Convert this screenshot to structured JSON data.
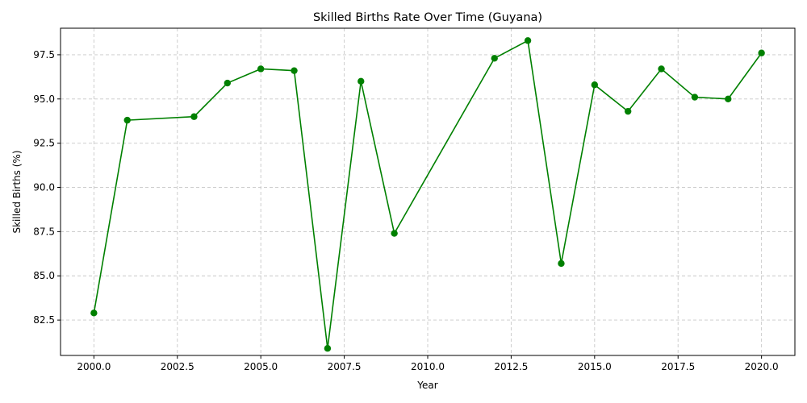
{
  "chart_data": {
    "type": "line",
    "title": "Skilled Births Rate Over Time (Guyana)",
    "xlabel": "Year",
    "ylabel": "Skilled Births (%)",
    "xlim": [
      1999,
      2021
    ],
    "ylim": [
      80.5,
      99.0
    ],
    "xticks": [
      2000.0,
      2002.5,
      2005.0,
      2007.5,
      2010.0,
      2012.5,
      2015.0,
      2017.5,
      2020.0
    ],
    "xtick_labels": [
      "2000.0",
      "2002.5",
      "2005.0",
      "2007.5",
      "2010.0",
      "2012.5",
      "2015.0",
      "2017.5",
      "2020.0"
    ],
    "yticks": [
      82.5,
      85.0,
      87.5,
      90.0,
      92.5,
      95.0,
      97.5
    ],
    "ytick_labels": [
      "82.5",
      "85.0",
      "87.5",
      "90.0",
      "92.5",
      "95.0",
      "97.5"
    ],
    "grid": true,
    "color": "#008000",
    "series": [
      {
        "x": [
          2000,
          2001,
          2003,
          2004,
          2005,
          2006,
          2007,
          2008,
          2009,
          2012,
          2013,
          2014,
          2015,
          2016,
          2017,
          2018,
          2019,
          2020
        ],
        "y": [
          82.9,
          93.8,
          94.0,
          95.9,
          96.7,
          96.6,
          80.9,
          96.0,
          87.4,
          97.3,
          98.3,
          85.7,
          95.8,
          94.3,
          96.7,
          95.1,
          95.0,
          97.6
        ]
      }
    ]
  }
}
